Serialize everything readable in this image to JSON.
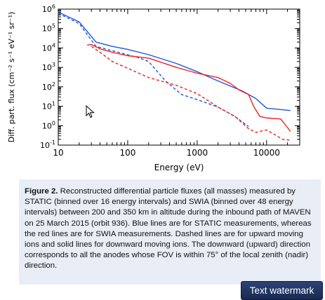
{
  "chart_data": {
    "type": "line",
    "xlabel": "Energy (eV)",
    "ylabel": "Diff. part. flux (cm⁻² s⁻¹ eV⁻¹ sr⁻¹)",
    "x_scale": "log",
    "y_scale": "log",
    "xlim": [
      10,
      30000
    ],
    "ylim": [
      0.1,
      1000000
    ],
    "x_ticks": [
      {
        "value": 10,
        "label": "10"
      },
      {
        "value": 100,
        "label": "100"
      },
      {
        "value": 1000,
        "label": "1000"
      },
      {
        "value": 10000,
        "label": "10000"
      }
    ],
    "y_ticks": [
      {
        "value": 1000000,
        "base": "10",
        "exp": "6"
      },
      {
        "value": 100000,
        "base": "10",
        "exp": "5"
      },
      {
        "value": 10000,
        "base": "10",
        "exp": "4"
      },
      {
        "value": 1000,
        "base": "10",
        "exp": "3"
      },
      {
        "value": 100,
        "base": "10",
        "exp": "2"
      },
      {
        "value": 10,
        "base": "10",
        "exp": "1"
      },
      {
        "value": 1,
        "base": "10",
        "exp": "0"
      },
      {
        "value": 0.1,
        "base": "10",
        "exp": "-1"
      }
    ],
    "series": [
      {
        "color": "#2255dd",
        "dash": false,
        "points": [
          [
            10,
            700000
          ],
          [
            20,
            220000
          ],
          [
            35,
            20000
          ],
          [
            60,
            12000
          ],
          [
            100,
            8500
          ],
          [
            200,
            4500
          ],
          [
            500,
            1600
          ],
          [
            1000,
            600
          ],
          [
            2000,
            200
          ],
          [
            4500,
            60
          ],
          [
            7000,
            25
          ],
          [
            10000,
            8
          ],
          [
            22000,
            6
          ]
        ]
      },
      {
        "color": "#2255dd",
        "dash": true,
        "points": [
          [
            10,
            600000
          ],
          [
            20,
            180000
          ],
          [
            35,
            12000
          ],
          [
            80,
            5500
          ],
          [
            150,
            3000
          ],
          [
            200,
            2000
          ],
          [
            350,
            200
          ],
          [
            600,
            40
          ],
          [
            1000,
            22
          ],
          [
            2000,
            9
          ],
          [
            3500,
            3
          ],
          [
            5500,
            0.9
          ]
        ]
      },
      {
        "color": "#ee2222",
        "dash": false,
        "points": [
          [
            26,
            14000
          ],
          [
            30,
            15000
          ],
          [
            40,
            9000
          ],
          [
            60,
            6000
          ],
          [
            100,
            4000
          ],
          [
            200,
            3000
          ],
          [
            500,
            1000
          ],
          [
            1000,
            500
          ],
          [
            2000,
            300
          ],
          [
            3000,
            150
          ],
          [
            4000,
            70
          ],
          [
            5500,
            40
          ],
          [
            6500,
            10
          ],
          [
            8000,
            3
          ],
          [
            10000,
            2.5
          ],
          [
            16000,
            2.2
          ],
          [
            20000,
            0.8
          ],
          [
            22000,
            0.5
          ]
        ]
      },
      {
        "color": "#ee2222",
        "dash": true,
        "points": [
          [
            30,
            12000
          ],
          [
            40,
            6000
          ],
          [
            60,
            2000
          ],
          [
            100,
            900
          ],
          [
            200,
            300
          ],
          [
            500,
            120
          ],
          [
            1000,
            45
          ],
          [
            2000,
            9
          ],
          [
            3500,
            3
          ],
          [
            5500,
            0.7
          ],
          [
            7000,
            0.45
          ],
          [
            10000,
            0.6
          ],
          [
            14000,
            0.3
          ],
          [
            17000,
            0.2
          ],
          [
            22000,
            0.18
          ]
        ]
      }
    ]
  },
  "figure": {
    "label": "Figure 2.",
    "caption": " Reconstructed differential particle fluxes (all masses) measured by STATIC (binned over 16 energy intervals) and SWIA (binned over 48 energy intervals) between 200 and 350 km in altitude during the inbound path of MAVEN on 25 March 2015 (orbit 936). Blue lines are for STATIC measurements, whereas the red lines are for SWIA measurements. Dashed lines are for upward moving ions and solid lines for downward moving ions. The downward (upward) direction corresponds to all the anodes whose FOV is within 75° of the local zenith (nadir) direction."
  },
  "watermark": {
    "label": "Text watermark"
  }
}
